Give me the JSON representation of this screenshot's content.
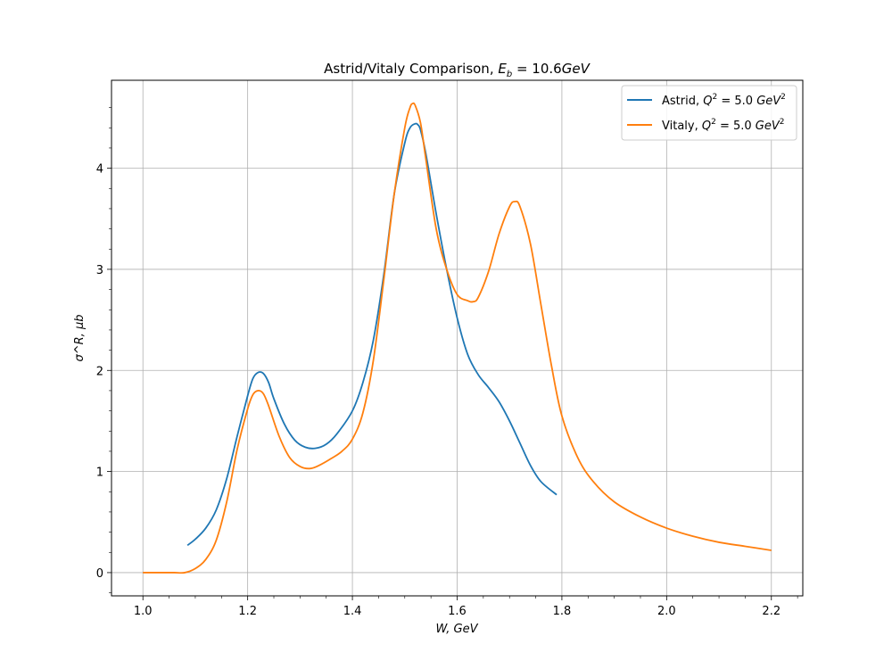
{
  "chart_data": {
    "type": "line",
    "title": "Astrid/Vitaly Comparison, E_b = 10.6GeV",
    "title_parts": {
      "prefix": "Astrid/Vitaly Comparison, ",
      "var": "E",
      "sub": "b",
      "eq": " = 10.6",
      "unit": "GeV"
    },
    "xlabel": "W, GeV",
    "ylabel": "σ^R, μb",
    "xlim": [
      0.94,
      2.26
    ],
    "ylim": [
      -0.23,
      4.87
    ],
    "xticks": [
      1.0,
      1.2,
      1.4,
      1.6,
      1.8,
      2.0,
      2.2
    ],
    "xtick_labels": [
      "1.0",
      "1.2",
      "1.4",
      "1.6",
      "1.8",
      "2.0",
      "2.2"
    ],
    "yticks": [
      0,
      1,
      2,
      3,
      4
    ],
    "ytick_labels": [
      "0",
      "1",
      "2",
      "3",
      "4"
    ],
    "grid": true,
    "legend_position": "top-right",
    "series": [
      {
        "name": "Astrid, Q^2 = 5.0 GeV^2",
        "legend": {
          "prefix": "Astrid, ",
          "eq": " = 5.0 ",
          "unit": "GeV"
        },
        "color": "#1f77b4",
        "x": [
          1.085,
          1.1,
          1.12,
          1.14,
          1.16,
          1.18,
          1.2,
          1.21,
          1.22,
          1.23,
          1.24,
          1.25,
          1.27,
          1.29,
          1.31,
          1.33,
          1.35,
          1.37,
          1.4,
          1.42,
          1.44,
          1.46,
          1.48,
          1.5,
          1.51,
          1.52,
          1.525,
          1.53,
          1.54,
          1.56,
          1.58,
          1.6,
          1.62,
          1.64,
          1.66,
          1.68,
          1.7,
          1.72,
          1.74,
          1.76,
          1.79
        ],
        "y": [
          0.27,
          0.33,
          0.44,
          0.62,
          0.93,
          1.35,
          1.75,
          1.92,
          1.98,
          1.97,
          1.88,
          1.72,
          1.47,
          1.31,
          1.24,
          1.23,
          1.27,
          1.37,
          1.6,
          1.88,
          2.3,
          2.95,
          3.75,
          4.25,
          4.4,
          4.44,
          4.43,
          4.38,
          4.15,
          3.55,
          3.0,
          2.52,
          2.16,
          1.96,
          1.83,
          1.69,
          1.5,
          1.28,
          1.06,
          0.9,
          0.77
        ]
      },
      {
        "name": "Vitaly, Q^2 = 5.0 GeV^2",
        "legend": {
          "prefix": "Vitaly, ",
          "eq": " = 5.0 ",
          "unit": "GeV"
        },
        "color": "#ff7f0e",
        "x": [
          1.0,
          1.02,
          1.04,
          1.06,
          1.08,
          1.1,
          1.12,
          1.14,
          1.16,
          1.18,
          1.2,
          1.21,
          1.22,
          1.23,
          1.24,
          1.26,
          1.28,
          1.3,
          1.32,
          1.34,
          1.36,
          1.38,
          1.4,
          1.42,
          1.44,
          1.46,
          1.48,
          1.5,
          1.51,
          1.515,
          1.52,
          1.53,
          1.54,
          1.56,
          1.58,
          1.6,
          1.62,
          1.63,
          1.64,
          1.66,
          1.68,
          1.7,
          1.71,
          1.72,
          1.74,
          1.76,
          1.78,
          1.8,
          1.83,
          1.86,
          1.9,
          1.95,
          2.0,
          2.05,
          2.1,
          2.15,
          2.2
        ],
        "y": [
          0.0,
          0.0,
          0.0,
          0.0,
          0.0,
          0.04,
          0.13,
          0.32,
          0.7,
          1.22,
          1.62,
          1.76,
          1.8,
          1.77,
          1.65,
          1.35,
          1.14,
          1.05,
          1.03,
          1.07,
          1.13,
          1.2,
          1.32,
          1.58,
          2.1,
          2.9,
          3.75,
          4.4,
          4.6,
          4.64,
          4.62,
          4.45,
          4.1,
          3.4,
          3.0,
          2.75,
          2.69,
          2.68,
          2.72,
          2.98,
          3.35,
          3.62,
          3.67,
          3.62,
          3.25,
          2.65,
          2.05,
          1.55,
          1.14,
          0.9,
          0.7,
          0.55,
          0.44,
          0.36,
          0.3,
          0.26,
          0.22
        ]
      }
    ]
  }
}
